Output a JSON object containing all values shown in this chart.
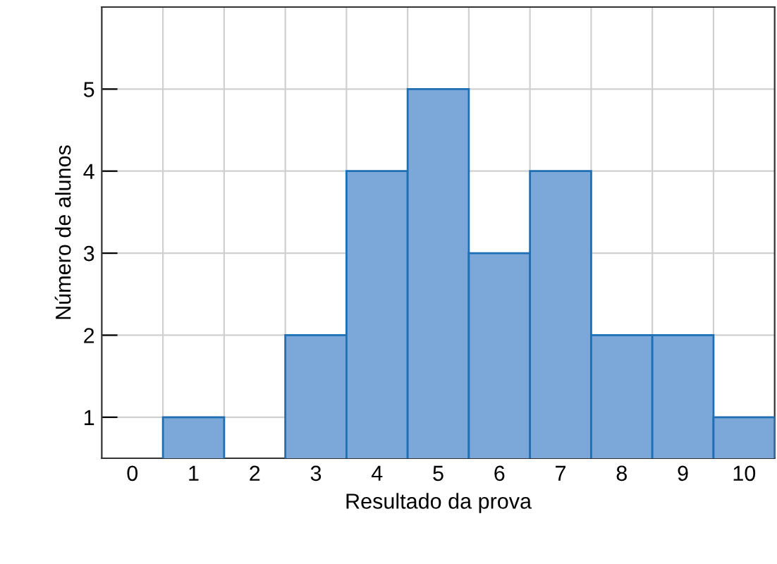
{
  "chart_data": {
    "type": "bar",
    "xlabel": "Resultado da prova",
    "ylabel": "Número de alunos",
    "categories": [
      "0",
      "1",
      "2",
      "3",
      "4",
      "5",
      "6",
      "7",
      "8",
      "9",
      "10"
    ],
    "values": [
      null,
      1,
      null,
      2,
      4,
      5,
      3,
      4,
      2,
      2,
      1
    ],
    "color": "#7ba7d9",
    "ylim": [
      0.5,
      6
    ],
    "yticks": [
      1,
      2,
      3,
      4,
      5
    ],
    "grid": true
  }
}
